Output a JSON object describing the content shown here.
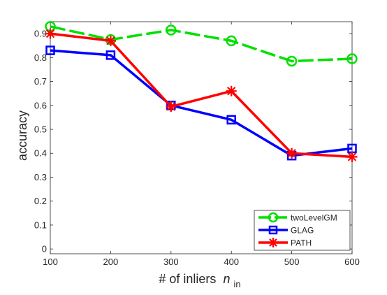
{
  "chart_data": {
    "type": "line",
    "title": "",
    "xlabel": "# of inliers",
    "xlabel_var": "n",
    "xlabel_sub": "in",
    "ylabel": "accuracy",
    "x": [
      100,
      200,
      300,
      400,
      500,
      600
    ],
    "xlim": [
      100,
      600
    ],
    "ylim": [
      -0.02,
      0.95
    ],
    "xticks": [
      100,
      200,
      300,
      400,
      500,
      600
    ],
    "yticks": [
      0,
      0.1,
      0.2,
      0.3,
      0.4,
      0.5,
      0.6,
      0.7,
      0.8,
      0.9
    ],
    "ytick_labels": [
      "0",
      "0.1",
      "0.2",
      "0.3",
      "0.4",
      "0.5",
      "0.6",
      "0.7",
      "0.8",
      "0.9"
    ],
    "grid": false,
    "legend_position": "bottom-right",
    "series": [
      {
        "name": "twoLevelGM",
        "values": [
          0.93,
          0.875,
          0.915,
          0.87,
          0.785,
          0.795
        ],
        "color": "#00e000",
        "marker": "circle",
        "dash": true
      },
      {
        "name": "GLAG",
        "values": [
          0.83,
          0.81,
          0.6,
          0.54,
          0.39,
          0.42
        ],
        "color": "#0000ff",
        "marker": "square",
        "dash": false
      },
      {
        "name": "PATH",
        "values": [
          0.9,
          0.87,
          0.595,
          0.66,
          0.4,
          0.385
        ],
        "color": "#ff0000",
        "marker": "star",
        "dash": false
      }
    ]
  }
}
